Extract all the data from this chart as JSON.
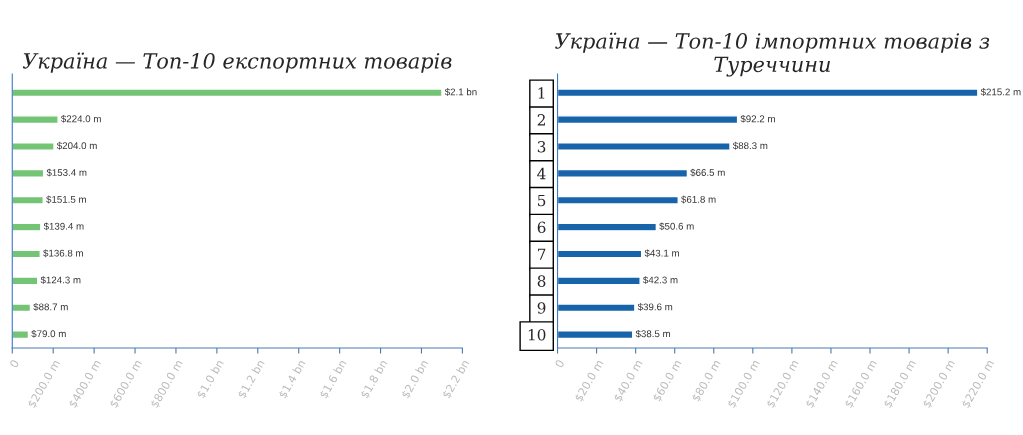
{
  "chart_data": [
    {
      "type": "bar",
      "orientation": "horizontal",
      "title": "Україна — Топ-10 експортних товарів",
      "categories": [
        null,
        null,
        null,
        null,
        null,
        null,
        null,
        null,
        null,
        null
      ],
      "values": [
        2100000000,
        224000000,
        204000000,
        153400000,
        151500000,
        139400000,
        136800000,
        124300000,
        88700000,
        79000000
      ],
      "value_labels": [
        "$2.1 bn",
        "$224.0 m",
        "$204.0 m",
        "$153.4 m",
        "$151.5 m",
        "$139.4 m",
        "$136.8 m",
        "$124.3 m",
        "$88.7 m",
        "$79.0 m"
      ],
      "color": "#74c476",
      "xlim": [
        0,
        2200000000
      ],
      "xticks": [
        0,
        {
          "value": 200000000,
          "label": "$200.0 m"
        },
        {
          "value": 400000000,
          "label": "$400.0 m"
        },
        {
          "value": 600000000,
          "label": "$600.0 m"
        },
        {
          "value": 800000000,
          "label": "$800.0 m"
        },
        {
          "value": 1000000000,
          "label": "$1.0 bn"
        },
        {
          "value": 1200000000,
          "label": "$1.2 bn"
        },
        {
          "value": 1400000000,
          "label": "$1.4 bn"
        },
        {
          "value": 1600000000,
          "label": "$1.6 bn"
        },
        {
          "value": 1800000000,
          "label": "$1.8 bn"
        },
        {
          "value": 2000000000,
          "label": "$2.0 bn"
        },
        {
          "value": 2200000000,
          "label": "$2.2 bn"
        }
      ],
      "grid": false,
      "legend": false
    },
    {
      "type": "bar",
      "orientation": "horizontal",
      "title": "Україна — Топ-10 імпортних товарів з Туреччини",
      "categories": [
        "1",
        "2",
        "3",
        "4",
        "5",
        "6",
        "7",
        "8",
        "9",
        "10"
      ],
      "values": [
        215200000,
        92200000,
        88300000,
        66500000,
        61800000,
        50600000,
        43100000,
        42300000,
        39600000,
        38500000
      ],
      "value_labels": [
        "$215.2 m",
        "$92.2 m",
        "$88.3 m",
        "$66.5 m",
        "$61.8 m",
        "$50.6 m",
        "$43.1 m",
        "$42.3 m",
        "$39.6 m",
        "$38.5 m"
      ],
      "color": "#1764ab",
      "xlim": [
        0,
        220000000
      ],
      "xticks": [
        0,
        {
          "value": 20000000,
          "label": "$20.0 m"
        },
        {
          "value": 40000000,
          "label": "$40.0 m"
        },
        {
          "value": 60000000,
          "label": "$60.0 m"
        },
        {
          "value": 80000000,
          "label": "$80.0 m"
        },
        {
          "value": 100000000,
          "label": "$100.0 m"
        },
        {
          "value": 120000000,
          "label": "$120.0 m"
        },
        {
          "value": 140000000,
          "label": "$140.0 m"
        },
        {
          "value": 160000000,
          "label": "$160.0 m"
        },
        {
          "value": 180000000,
          "label": "$180.0 m"
        },
        {
          "value": 200000000,
          "label": "$200.0 m"
        },
        {
          "value": 220000000,
          "label": "$220.0 m"
        }
      ],
      "grid": false,
      "legend": false
    }
  ]
}
